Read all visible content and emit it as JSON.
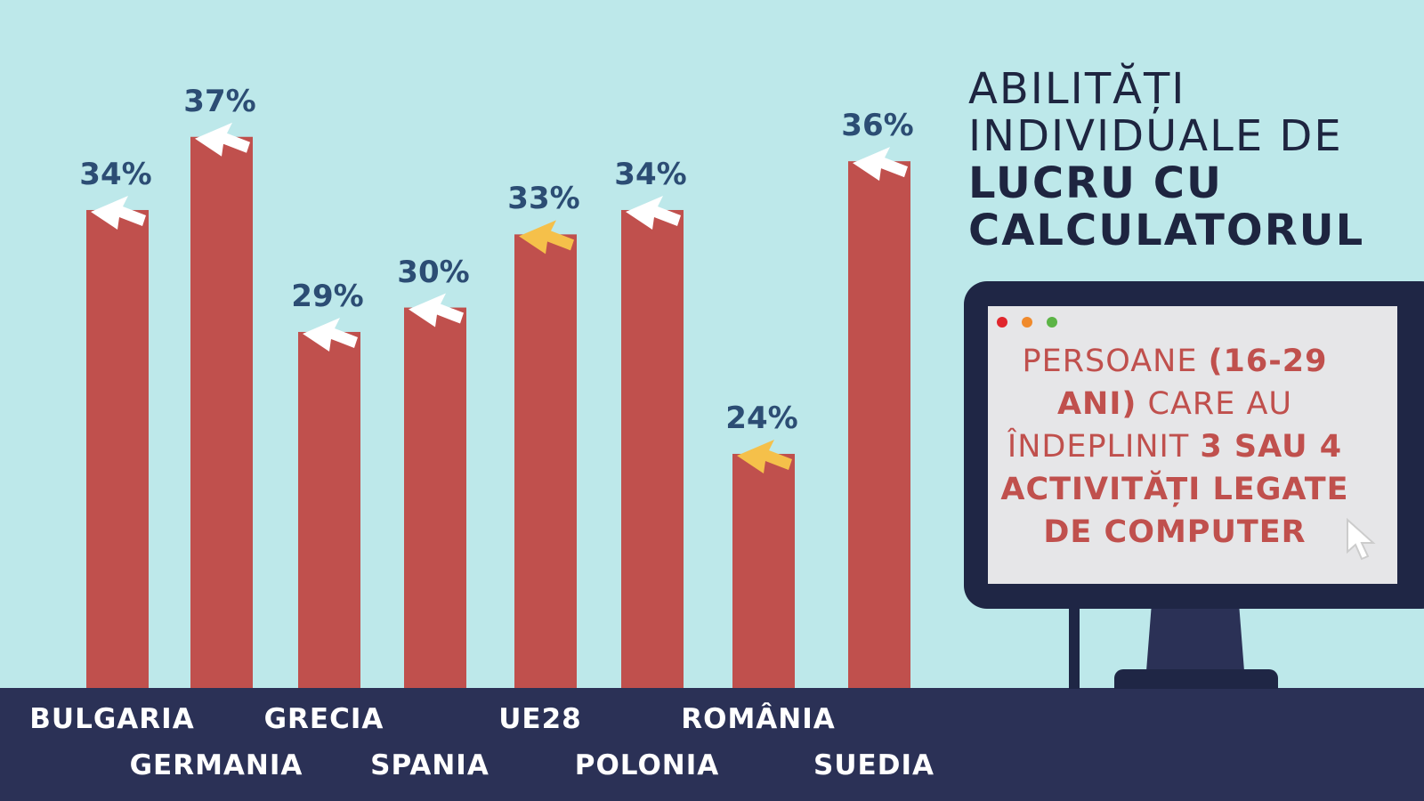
{
  "chart_data": {
    "type": "bar",
    "title": "ABILITĂȚI INDIVIDUALE DE LUCRU CU CALCULATORUL",
    "subtitle": "PERSOANE (16-29 ANI) CARE AU ÎNDEPLINIT 3 SAU 4 ACTIVITĂȚI LEGATE DE COMPUTER",
    "categories": [
      "BULGARIA",
      "GERMANIA",
      "GRECIA",
      "SPANIA",
      "UE28",
      "POLONIA",
      "ROMÂNIA",
      "SUEDIA"
    ],
    "values": [
      34,
      37,
      29,
      30,
      33,
      34,
      24,
      36
    ],
    "value_labels": [
      "34%",
      "37%",
      "29%",
      "30%",
      "33%",
      "34%",
      "24%",
      "36%"
    ],
    "highlighted": [
      "UE28",
      "ROMÂNIA"
    ],
    "xlabel": "",
    "ylabel": "",
    "ylim": [
      14.4,
      40
    ],
    "grid": false
  },
  "title": {
    "line1": "ABILITĂȚI",
    "line2": "INDIVIDUALE DE",
    "line3": "LUCRU CU",
    "line4": "CALCULATORUL"
  },
  "screen": {
    "t1": "PERSOANE ",
    "t2": "(16-29",
    "t3": "ANI)",
    "t4": " CARE AU",
    "t5": "ÎNDEPLINIT ",
    "t6": "3 SAU 4",
    "t7": "ACTIVITĂȚI LEGATE",
    "t8": "DE COMPUTER"
  },
  "colors": {
    "bar": "#c0504d",
    "cursor": "#ffffff",
    "cursor_highlight": "#f5c04a",
    "band": "#2b3156",
    "background": "#bde8ea"
  }
}
